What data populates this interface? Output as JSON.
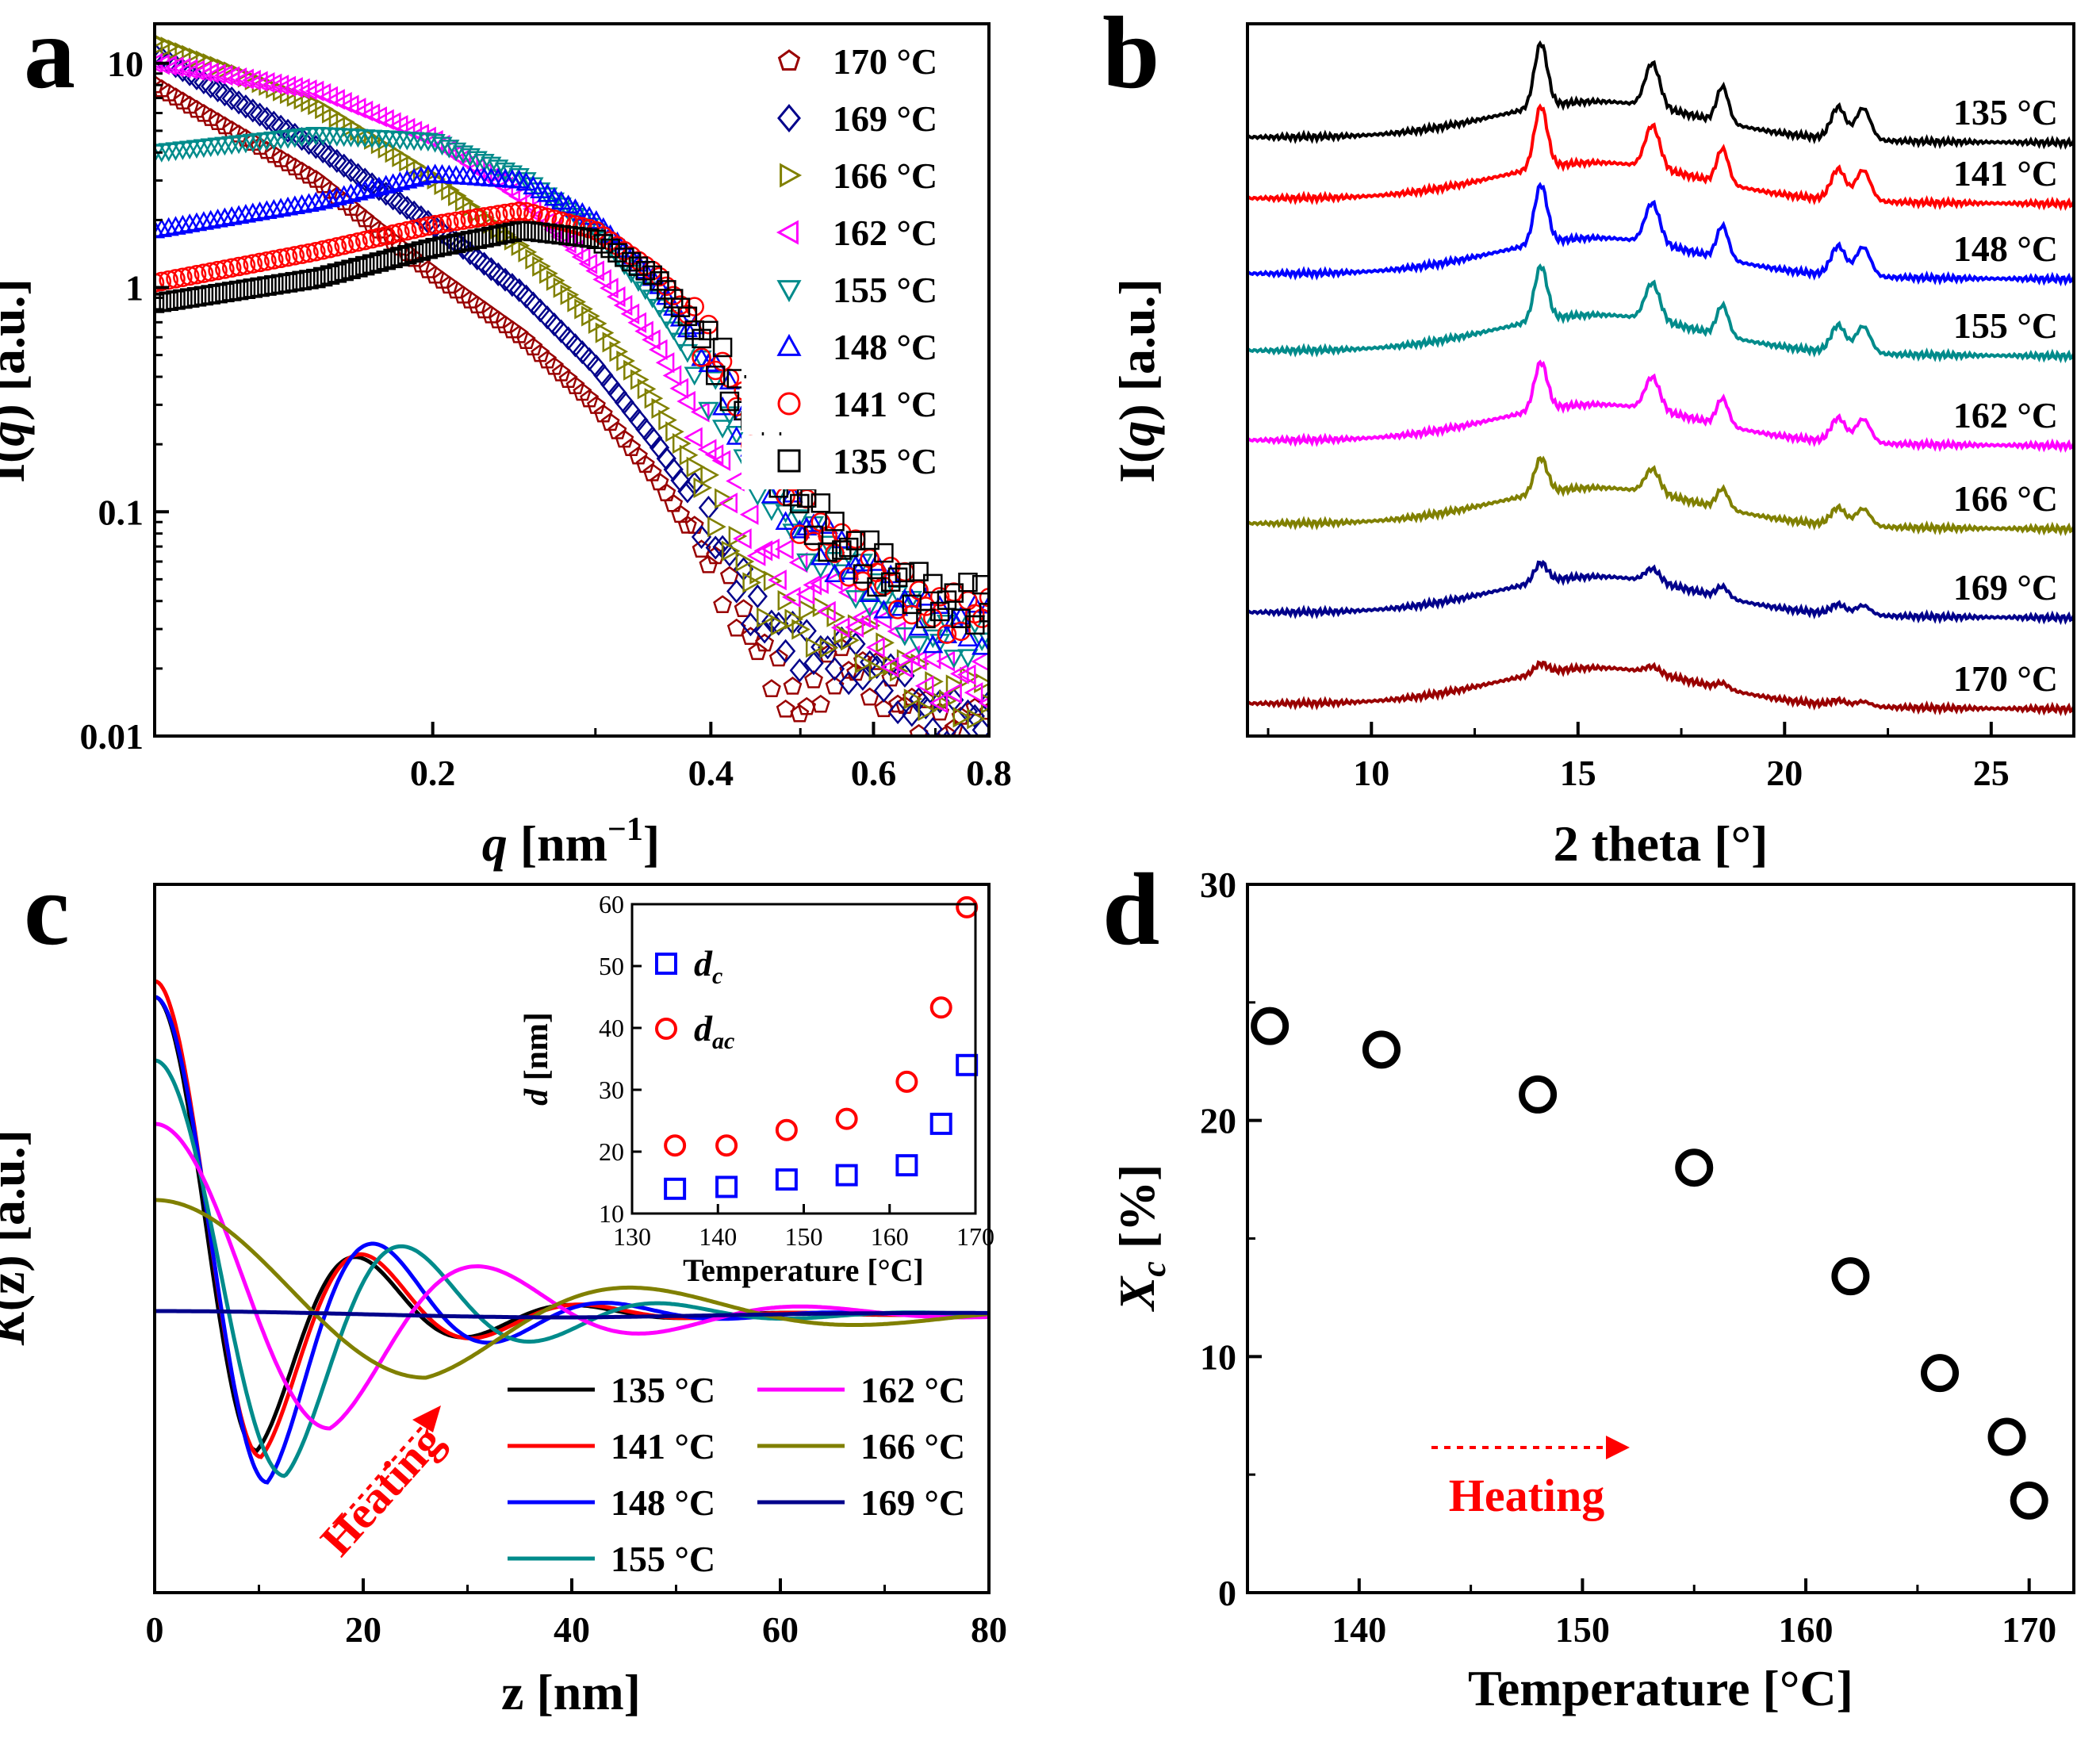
{
  "colors": {
    "t135": "#000000",
    "t141": "#ff0000",
    "t148": "#0000ff",
    "t155": "#008b8b",
    "t162": "#ff00ff",
    "t166": "#808000",
    "t169": "#00008b",
    "t170": "#990000",
    "heating": "#ff0000"
  },
  "labels": {
    "a": "a",
    "b": "b",
    "c": "c",
    "d": "d"
  },
  "legend_temps": [
    "135 °C",
    "141 °C",
    "148 °C",
    "155 °C",
    "162 °C",
    "166 °C",
    "169 °C",
    "170 °C"
  ],
  "chart_data": [
    {
      "panel": "a",
      "type": "scatter",
      "xlabel": "q  [nm⁻¹]",
      "ylabel": "I(q) [a.u.]",
      "xscale": "log",
      "yscale": "log",
      "xlim": [
        0.1,
        0.8
      ],
      "ylim": [
        0.01,
        15
      ],
      "xticks": [
        0.2,
        0.4,
        0.6,
        0.8
      ],
      "xtick_labels": [
        "0.2",
        "0.4",
        "0.6",
        "0.8"
      ],
      "yticks": [
        0.01,
        0.1,
        1,
        10
      ],
      "ytick_labels": [
        "0.01",
        "0.1",
        "1",
        "10"
      ],
      "legend": "top-right",
      "series": [
        {
          "name": "170 °C",
          "marker": "pentagon",
          "color_key": "t170",
          "points": [
            [
              0.1,
              8
            ],
            [
              0.15,
              3.0
            ],
            [
              0.2,
              1.15
            ],
            [
              0.25,
              0.6
            ],
            [
              0.3,
              0.3
            ],
            [
              0.35,
              0.14
            ],
            [
              0.4,
              0.06
            ],
            [
              0.45,
              0.025
            ],
            [
              0.5,
              0.013
            ],
            [
              0.55,
              0.022
            ],
            [
              0.6,
              0.018
            ],
            [
              0.7,
              0.011
            ]
          ]
        },
        {
          "name": "169 °C",
          "marker": "diamond",
          "color_key": "t169",
          "points": [
            [
              0.1,
              11
            ],
            [
              0.15,
              4.2
            ],
            [
              0.2,
              1.9
            ],
            [
              0.25,
              0.95
            ],
            [
              0.3,
              0.45
            ],
            [
              0.35,
              0.2
            ],
            [
              0.4,
              0.085
            ],
            [
              0.45,
              0.035
            ],
            [
              0.5,
              0.025
            ],
            [
              0.55,
              0.023
            ],
            [
              0.6,
              0.02
            ],
            [
              0.7,
              0.012
            ]
          ]
        },
        {
          "name": "166 °C",
          "marker": "triangle-right",
          "color_key": "t166",
          "points": [
            [
              0.1,
              12.5
            ],
            [
              0.15,
              6.5
            ],
            [
              0.2,
              3.1
            ],
            [
              0.25,
              1.5
            ],
            [
              0.3,
              0.7
            ],
            [
              0.35,
              0.3
            ],
            [
              0.4,
              0.12
            ],
            [
              0.45,
              0.045
            ],
            [
              0.5,
              0.032
            ],
            [
              0.55,
              0.03
            ],
            [
              0.6,
              0.025
            ],
            [
              0.7,
              0.015
            ]
          ]
        },
        {
          "name": "162 °C",
          "marker": "triangle-left",
          "color_key": "t162",
          "points": [
            [
              0.1,
              10
            ],
            [
              0.15,
              7.5
            ],
            [
              0.2,
              4.6
            ],
            [
              0.25,
              2.5
            ],
            [
              0.3,
              1.2
            ],
            [
              0.35,
              0.55
            ],
            [
              0.4,
              0.2
            ],
            [
              0.45,
              0.07
            ],
            [
              0.5,
              0.05
            ],
            [
              0.55,
              0.04
            ],
            [
              0.6,
              0.03
            ],
            [
              0.7,
              0.018
            ]
          ]
        },
        {
          "name": "155 °C",
          "marker": "triangle-down",
          "color_key": "t155",
          "points": [
            [
              0.1,
              4
            ],
            [
              0.15,
              4.8
            ],
            [
              0.2,
              4.5
            ],
            [
              0.25,
              3.1
            ],
            [
              0.3,
              1.8
            ],
            [
              0.35,
              0.85
            ],
            [
              0.4,
              0.35
            ],
            [
              0.45,
              0.15
            ],
            [
              0.5,
              0.08
            ],
            [
              0.55,
              0.06
            ],
            [
              0.6,
              0.045
            ],
            [
              0.7,
              0.028
            ]
          ]
        },
        {
          "name": "148 °C",
          "marker": "triangle-up",
          "color_key": "t148",
          "points": [
            [
              0.1,
              1.8
            ],
            [
              0.15,
              2.4
            ],
            [
              0.2,
              3.2
            ],
            [
              0.25,
              3.0
            ],
            [
              0.3,
              2.0
            ],
            [
              0.35,
              1.05
            ],
            [
              0.4,
              0.45
            ],
            [
              0.45,
              0.18
            ],
            [
              0.5,
              0.09
            ],
            [
              0.55,
              0.065
            ],
            [
              0.6,
              0.05
            ],
            [
              0.7,
              0.032
            ]
          ]
        },
        {
          "name": "141 °C",
          "marker": "circle",
          "color_key": "t141",
          "points": [
            [
              0.1,
              1.05
            ],
            [
              0.15,
              1.45
            ],
            [
              0.2,
              1.9
            ],
            [
              0.25,
              2.2
            ],
            [
              0.3,
              1.8
            ],
            [
              0.35,
              1.15
            ],
            [
              0.4,
              0.55
            ],
            [
              0.45,
              0.22
            ],
            [
              0.5,
              0.1
            ],
            [
              0.55,
              0.07
            ],
            [
              0.6,
              0.055
            ],
            [
              0.7,
              0.036
            ]
          ]
        },
        {
          "name": "135 °C",
          "marker": "square",
          "color_key": "t135",
          "points": [
            [
              0.1,
              0.85
            ],
            [
              0.15,
              1.1
            ],
            [
              0.2,
              1.5
            ],
            [
              0.25,
              1.8
            ],
            [
              0.3,
              1.65
            ],
            [
              0.35,
              1.1
            ],
            [
              0.4,
              0.55
            ],
            [
              0.45,
              0.23
            ],
            [
              0.5,
              0.11
            ],
            [
              0.55,
              0.075
            ],
            [
              0.6,
              0.06
            ],
            [
              0.7,
              0.04
            ]
          ]
        }
      ]
    },
    {
      "panel": "b",
      "type": "line",
      "xlabel": "2 theta  [°]",
      "ylabel": "I(q)  [a.u.]",
      "xlim": [
        7,
        27
      ],
      "xticks": [
        10,
        15,
        20,
        25
      ],
      "xtick_labels": [
        "10",
        "15",
        "20",
        "25"
      ],
      "peaks_2theta": [
        14.1,
        16.8,
        18.5,
        21.3,
        21.9
      ],
      "series": [
        {
          "name": "170 °C",
          "color_key": "t170",
          "baseline_offset": 7,
          "peak_scale": 0.15
        },
        {
          "name": "169 °C",
          "color_key": "t169",
          "baseline_offset": 6,
          "peak_scale": 0.3
        },
        {
          "name": "166 °C",
          "color_key": "t166",
          "baseline_offset": 5,
          "peak_scale": 0.55
        },
        {
          "name": "162 °C",
          "color_key": "t162",
          "baseline_offset": 4,
          "peak_scale": 0.75
        },
        {
          "name": "155 °C",
          "color_key": "t155",
          "baseline_offset": 3,
          "peak_scale": 0.85
        },
        {
          "name": "148 °C",
          "color_key": "t148",
          "baseline_offset": 2,
          "peak_scale": 0.92
        },
        {
          "name": "141 °C",
          "color_key": "t141",
          "baseline_offset": 1,
          "peak_scale": 0.97
        },
        {
          "name": "135 °C",
          "color_key": "t135",
          "baseline_offset": 0,
          "peak_scale": 1.0
        }
      ]
    },
    {
      "panel": "c",
      "type": "line",
      "xlabel": "z  [nm]",
      "ylabel": "K(z)  [a.u.]",
      "xlim": [
        0,
        80
      ],
      "xticks": [
        0,
        20,
        40,
        60,
        80
      ],
      "xtick_labels": [
        "0",
        "20",
        "40",
        "60",
        "80"
      ],
      "annotation": "Heating",
      "series": [
        {
          "name": "135 °C",
          "color_key": "t135",
          "K0": 1.0,
          "min_z": 9.8,
          "min_val": -0.43,
          "period": 20.7
        },
        {
          "name": "141 °C",
          "color_key": "t141",
          "K0": 1.05,
          "min_z": 10.2,
          "min_val": -0.45,
          "period": 21.0
        },
        {
          "name": "148 °C",
          "color_key": "t148",
          "K0": 1.0,
          "min_z": 10.8,
          "min_val": -0.53,
          "period": 22.2
        },
        {
          "name": "155 °C",
          "color_key": "t155",
          "K0": 0.8,
          "min_z": 12.5,
          "min_val": -0.51,
          "period": 24.5
        },
        {
          "name": "162 °C",
          "color_key": "t162",
          "K0": 0.6,
          "min_z": 16.8,
          "min_val": -0.36,
          "period": 31.0
        },
        {
          "name": "166 °C",
          "color_key": "t166",
          "K0": 0.36,
          "min_z": 26.0,
          "min_val": -0.2,
          "period": 43.0
        },
        {
          "name": "169 °C",
          "color_key": "t169",
          "K0": 0.01,
          "min_z": 40.0,
          "min_val": -0.01,
          "period": 80.0
        }
      ],
      "inset": {
        "type": "scatter",
        "xlabel": "Temperature  [°C]",
        "ylabel": "d  [nm]",
        "xlim": [
          130,
          170
        ],
        "ylim": [
          10,
          60
        ],
        "xticks": [
          130,
          140,
          150,
          160,
          170
        ],
        "yticks": [
          10,
          20,
          30,
          40,
          50,
          60
        ],
        "series": [
          {
            "name": "d_c",
            "main": "d",
            "sub": "c",
            "marker": "square",
            "color_key": "t148",
            "x": [
              135,
              141,
              148,
              155,
              162,
              166,
              169
            ],
            "y": [
              14,
              14.3,
              15.5,
              16.2,
              17.8,
              24.5,
              34
            ]
          },
          {
            "name": "d_ac",
            "main": "d",
            "sub": "ac",
            "marker": "circle",
            "color_key": "t141",
            "x": [
              135,
              141,
              148,
              155,
              162,
              166,
              169
            ],
            "y": [
              21,
              21,
              23.5,
              25.3,
              31.3,
              43.3,
              59.5
            ]
          }
        ]
      }
    },
    {
      "panel": "d",
      "type": "scatter",
      "xlabel": "Temperature  [°C]",
      "ylabel": "X_c [%]",
      "ylabel_main": "X",
      "ylabel_sub": "c",
      "ylabel_rest": " [%]",
      "xlim": [
        135,
        172
      ],
      "ylim": [
        0,
        30
      ],
      "xticks": [
        140,
        150,
        160,
        170
      ],
      "yticks": [
        0,
        10,
        20,
        30
      ],
      "annotation": "Heating",
      "x": [
        136,
        141,
        148,
        155,
        162,
        166,
        169,
        170
      ],
      "y": [
        24,
        23,
        21.1,
        18,
        13.4,
        9.3,
        6.6,
        3.9
      ]
    }
  ]
}
